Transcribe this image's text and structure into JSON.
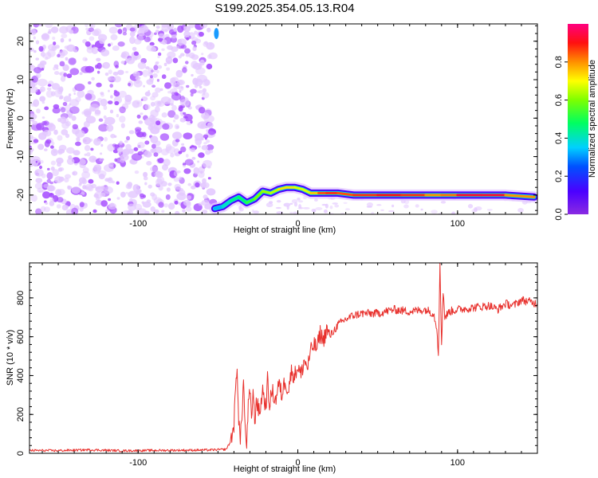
{
  "title": "S199.2025.354.05.13.R04",
  "colors": {
    "spectrum_noise": "#a64dff",
    "spectrum_noise_light": "#e3c8ff",
    "snr_line": "#e8302c"
  },
  "chart_data": [
    {
      "type": "heatmap",
      "title": "S199.2025.354.05.13.R04",
      "xlabel": "Height of straight line (km)",
      "ylabel": "Frequency (Hz)",
      "xlim": [
        -168,
        150
      ],
      "ylim": [
        -25,
        24.5
      ],
      "x_ticks": [
        -100,
        0,
        100
      ],
      "x_tick_labels": [
        "-100",
        "0",
        "100"
      ],
      "y_ticks": [
        20,
        10,
        0,
        -10,
        -20
      ],
      "y_tick_labels": [
        "20",
        "10",
        "0",
        "-10",
        "-20"
      ],
      "noise_region_x": [
        -168,
        -53
      ],
      "signal_trace": {
        "x": [
          -52,
          -47,
          -42,
          -37,
          -32,
          -27,
          -22,
          -17,
          -12,
          -7,
          -2,
          3,
          8,
          13,
          18,
          25,
          35,
          50,
          65,
          80,
          90,
          100,
          115,
          130,
          148
        ],
        "frequency": [
          -23.5,
          -23,
          -21.5,
          -20.5,
          -22,
          -21,
          -19,
          -19.5,
          -18.5,
          -18,
          -18,
          -18.5,
          -19.5,
          -19.5,
          -19.5,
          -19.5,
          -20,
          -20,
          -20,
          -20,
          -20,
          -20,
          -20,
          -20,
          -20.5
        ],
        "amplitude": [
          0.3,
          0.35,
          0.45,
          0.45,
          0.5,
          0.55,
          0.65,
          0.6,
          0.7,
          0.75,
          0.7,
          0.65,
          0.7,
          0.8,
          0.9,
          0.85,
          0.85,
          0.9,
          0.9,
          0.85,
          0.75,
          0.9,
          0.95,
          0.9,
          0.7
        ]
      },
      "colorbar": {
        "label": "Normalized spectral amplitude",
        "range": [
          0,
          1
        ],
        "ticks": [
          0.0,
          0.2,
          0.4,
          0.6,
          0.8
        ],
        "tick_labels": [
          "0.0",
          "0.2",
          "0.4",
          "0.6",
          "0.8"
        ],
        "colormap": "rainbow (purple to magenta)"
      },
      "grid": false
    },
    {
      "type": "line",
      "xlabel": "Height of straight line (km)",
      "ylabel": "SNR (10 * v/v)",
      "xlim": [
        -168,
        150
      ],
      "ylim": [
        0,
        980
      ],
      "x_ticks": [
        -100,
        0,
        100
      ],
      "x_tick_labels": [
        "-100",
        "0",
        "100"
      ],
      "y_ticks": [
        0,
        200,
        400,
        600,
        800
      ],
      "y_tick_labels": [
        "0",
        "200",
        "400",
        "600",
        "800"
      ],
      "grid": false,
      "series": [
        {
          "x": [
            -168,
            -150,
            -130,
            -110,
            -90,
            -70,
            -55,
            -45,
            -42,
            -40,
            -39,
            -38,
            -37,
            -36,
            -35,
            -34,
            -33,
            -32,
            -31,
            -30,
            -29,
            -28,
            -27,
            -26,
            -24,
            -22,
            -20,
            -19,
            -18,
            -16,
            -14,
            -12,
            -10,
            -8,
            -6,
            -4,
            -2,
            0,
            2,
            4,
            6,
            8,
            10,
            12,
            14,
            16,
            18,
            20,
            25,
            30,
            35,
            40,
            50,
            60,
            70,
            80,
            85,
            87,
            88,
            89,
            90,
            91,
            92,
            95,
            100,
            110,
            120,
            125,
            130,
            135,
            140,
            145,
            150
          ],
          "y": [
            15,
            14,
            18,
            13,
            15,
            16,
            17,
            20,
            60,
            150,
            320,
            450,
            180,
            60,
            200,
            380,
            120,
            30,
            250,
            310,
            180,
            330,
            150,
            280,
            200,
            330,
            230,
            380,
            250,
            320,
            270,
            360,
            300,
            380,
            320,
            420,
            400,
            450,
            400,
            480,
            440,
            520,
            560,
            540,
            620,
            580,
            640,
            600,
            660,
            690,
            710,
            720,
            720,
            740,
            730,
            740,
            720,
            650,
            520,
            960,
            560,
            840,
            700,
            730,
            740,
            750,
            760,
            740,
            770,
            760,
            790,
            780,
            770
          ]
        }
      ]
    }
  ]
}
